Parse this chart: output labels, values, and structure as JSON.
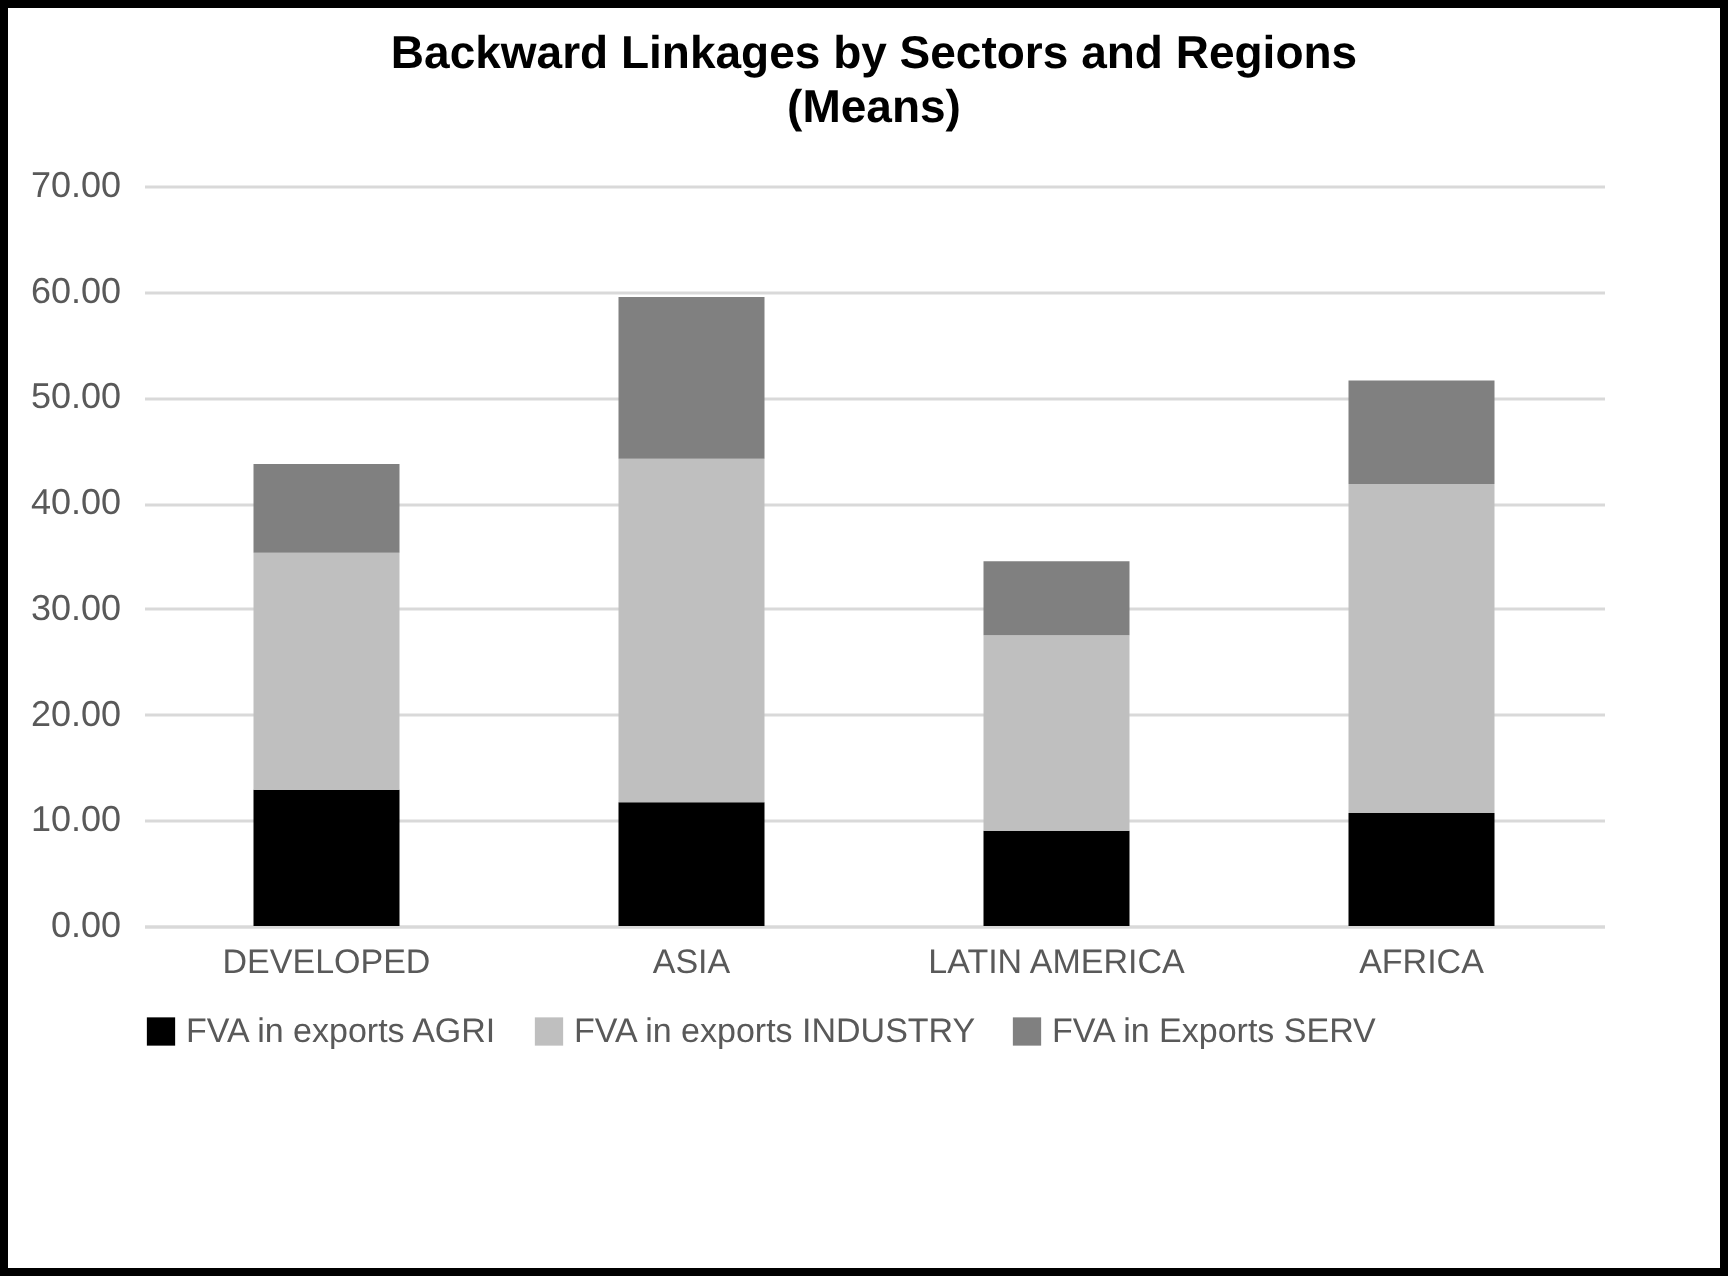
{
  "chart_data": {
    "type": "bar",
    "title": "Backward Linkages by Sectors and Regions",
    "subtitle": "(Means)",
    "stacked": true,
    "categories": [
      "DEVELOPED",
      "ASIA",
      "LATIN AMERICA",
      "AFRICA"
    ],
    "series": [
      {
        "name": "FVA in exports AGRI",
        "color": "#000000",
        "values": [
          12.9,
          11.7,
          9.0,
          10.7
        ]
      },
      {
        "name": "FVA in exports INDUSTRY",
        "color": "#bfbfbf",
        "values": [
          22.4,
          32.5,
          18.5,
          31.1
        ]
      },
      {
        "name": "FVA in Exports SERV",
        "color": "#808080",
        "values": [
          8.4,
          15.3,
          7.0,
          9.8
        ]
      }
    ],
    "ylim": [
      0,
      70
    ],
    "yticks": [
      {
        "value": 0,
        "label": "0.00"
      },
      {
        "value": 10,
        "label": "10.00"
      },
      {
        "value": 20,
        "label": "20.00"
      },
      {
        "value": 30,
        "label": "30.00"
      },
      {
        "value": 40,
        "label": "40.00"
      },
      {
        "value": 50,
        "label": "50.00"
      },
      {
        "value": 60,
        "label": "60.00"
      },
      {
        "value": 70,
        "label": "70.00"
      }
    ],
    "grid": "y",
    "legend": "bottom"
  }
}
